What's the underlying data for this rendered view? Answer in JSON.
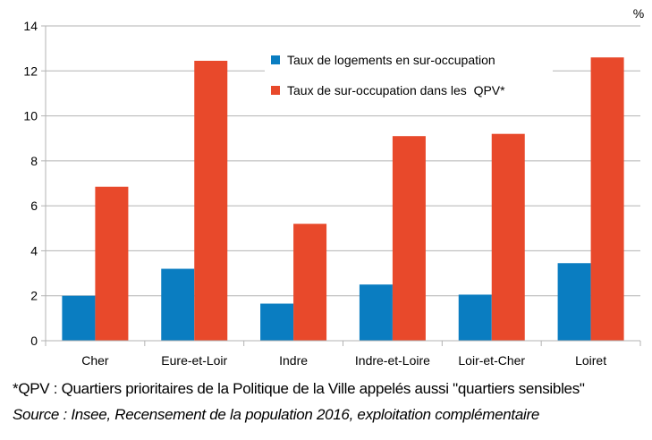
{
  "chart_data": {
    "type": "bar",
    "categories": [
      "Cher",
      "Eure-et-Loir",
      "Indre",
      "Indre-et-Loire",
      "Loir-et-Cher",
      "Loiret"
    ],
    "series": [
      {
        "name": "Taux de logements en sur-occupation",
        "color": "#0a7dc1",
        "values": [
          2.0,
          3.2,
          1.65,
          2.5,
          2.05,
          3.45
        ]
      },
      {
        "name": "Taux de sur-occupation dans les  QPV*",
        "color": "#e8492b",
        "values": [
          6.85,
          12.45,
          5.2,
          9.1,
          9.2,
          12.6
        ]
      }
    ],
    "unit": "%",
    "ylim": [
      0,
      14
    ],
    "yticks": [
      0,
      2,
      4,
      6,
      8,
      10,
      12,
      14
    ],
    "grid": true,
    "legend_position": "top-center"
  },
  "footnotes": {
    "qpv": "*QPV : Quartiers prioritaires de la Politique de la Ville  appelés aussi \"quartiers sensibles\"",
    "source": "Source : Insee, Recensement de la population 2016, exploitation complémentaire"
  }
}
